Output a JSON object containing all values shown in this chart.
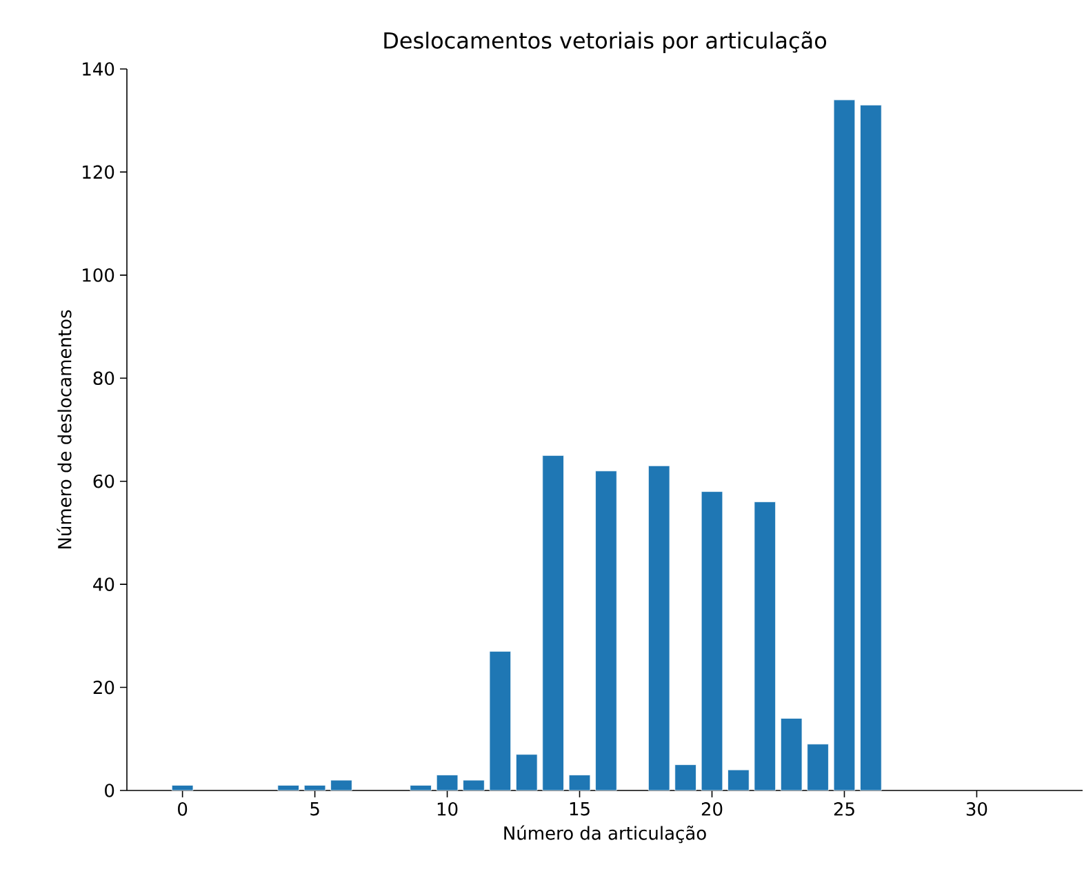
{
  "chart_data": {
    "type": "bar",
    "title": "Deslocamentos vetoriais por articulação",
    "xlabel": "Número da articulação",
    "ylabel": "Número de deslocamentos",
    "x": [
      0,
      4,
      5,
      6,
      9,
      10,
      11,
      12,
      13,
      14,
      15,
      16,
      18,
      19,
      20,
      21,
      22,
      23,
      24,
      25,
      26
    ],
    "values": [
      1,
      1,
      1,
      2,
      1,
      3,
      2,
      27,
      7,
      65,
      3,
      62,
      63,
      5,
      58,
      4,
      56,
      14,
      9,
      134,
      133
    ],
    "color": "#1f77b4",
    "xlim": [
      -2.1,
      34
    ],
    "ylim": [
      0,
      140
    ],
    "xticks": [
      0,
      5,
      10,
      15,
      20,
      25,
      30
    ],
    "yticks": [
      0,
      20,
      40,
      60,
      80,
      100,
      120,
      140
    ],
    "grid": false
  }
}
